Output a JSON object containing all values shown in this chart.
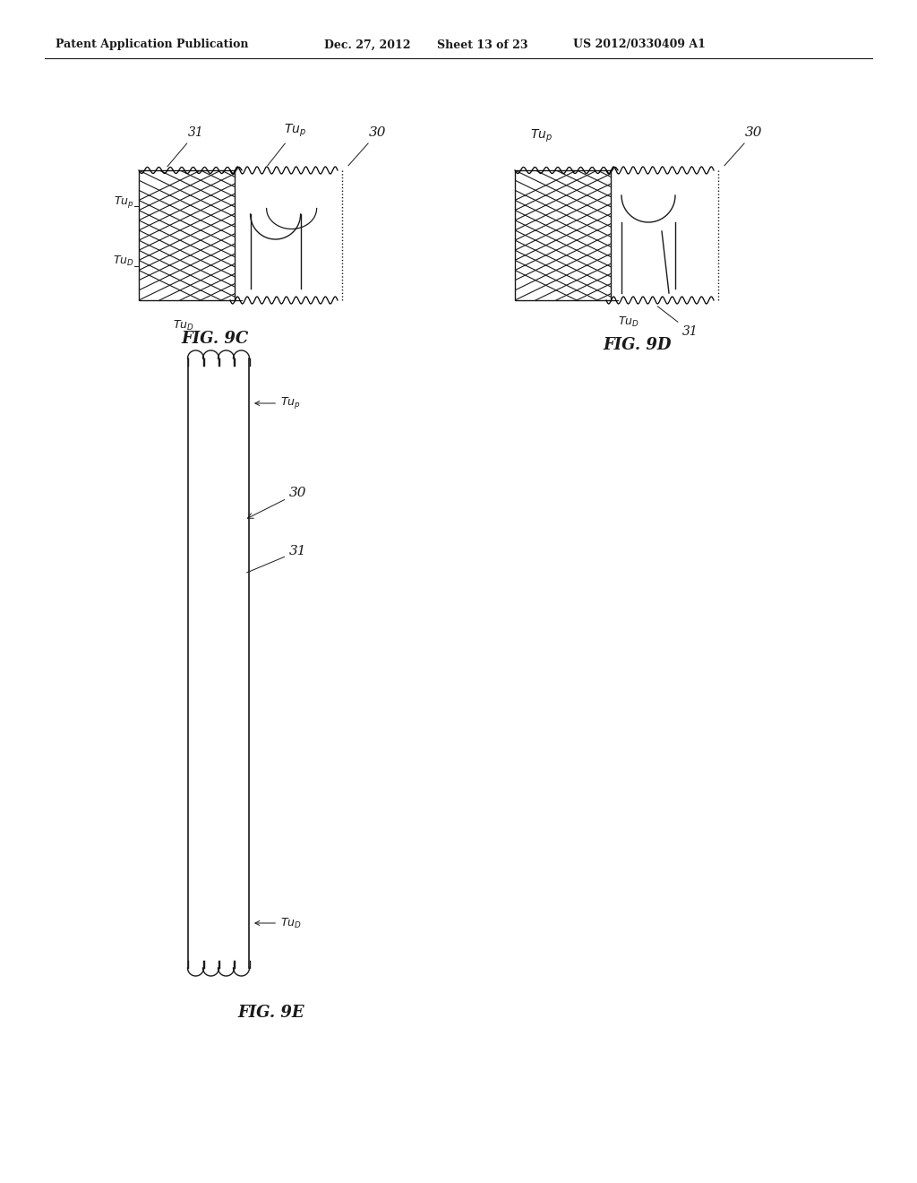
{
  "bg_color": "#ffffff",
  "line_color": "#1a1a1a",
  "header_text": "Patent Application Publication",
  "header_date": "Dec. 27, 2012",
  "header_sheet": "Sheet 13 of 23",
  "header_patent": "US 2012/0330409 A1",
  "fig9c_label": "FIG. 9C",
  "fig9d_label": "FIG. 9D",
  "fig9e_label": "FIG. 9E"
}
